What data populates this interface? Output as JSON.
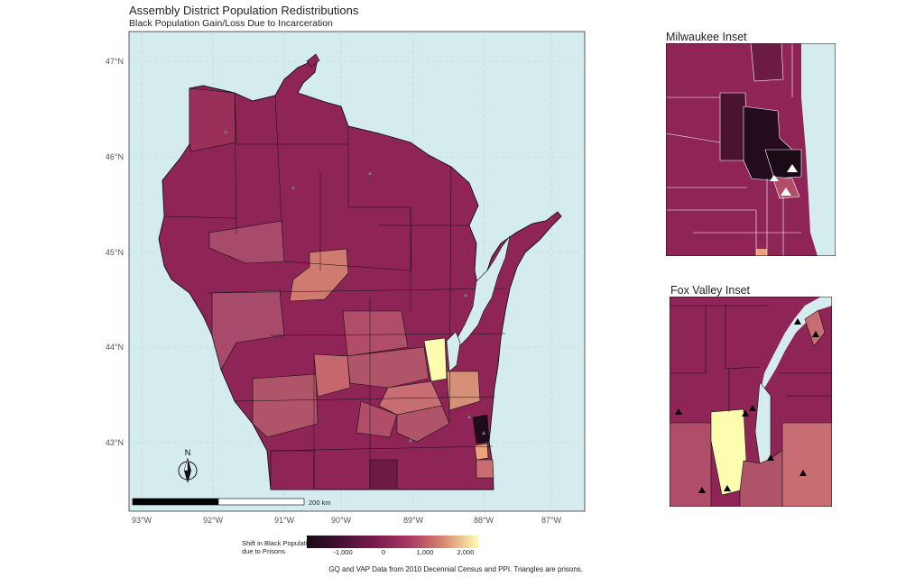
{
  "title": "Assembly District Population Redistributions",
  "subtitle": "Black Population Gain/Loss Due to Incarceration",
  "main_map": {
    "lat_labels": [
      "47°N",
      "46°N",
      "45°N",
      "44°N",
      "43°N"
    ],
    "lon_labels": [
      "93°W",
      "92°W",
      "91°W",
      "90°W",
      "89°W",
      "88°W",
      "87°W"
    ],
    "north_arrow_label": "N",
    "scale_label": "200 km",
    "colors": {
      "water": "#d4ecee",
      "district_default": "#8f2457",
      "district_mid": "#b04e6a",
      "district_light": "#c86e72",
      "district_peach": "#e9a47a",
      "district_high": "#fdfdb0",
      "district_dark": "#1f0c18"
    }
  },
  "insets": {
    "milwaukee": {
      "title": "Milwaukee Inset"
    },
    "fox_valley": {
      "title": "Fox Valley Inset"
    }
  },
  "legend": {
    "title_line1": "Shift in Black Population",
    "title_line2": "due to Prisons",
    "ticks": [
      "-1,000",
      "0",
      "1,000",
      "2,000"
    ]
  },
  "caption": "GQ and VAP Data from 2010 Decennial Census and PPI. Triangles are prisons."
}
